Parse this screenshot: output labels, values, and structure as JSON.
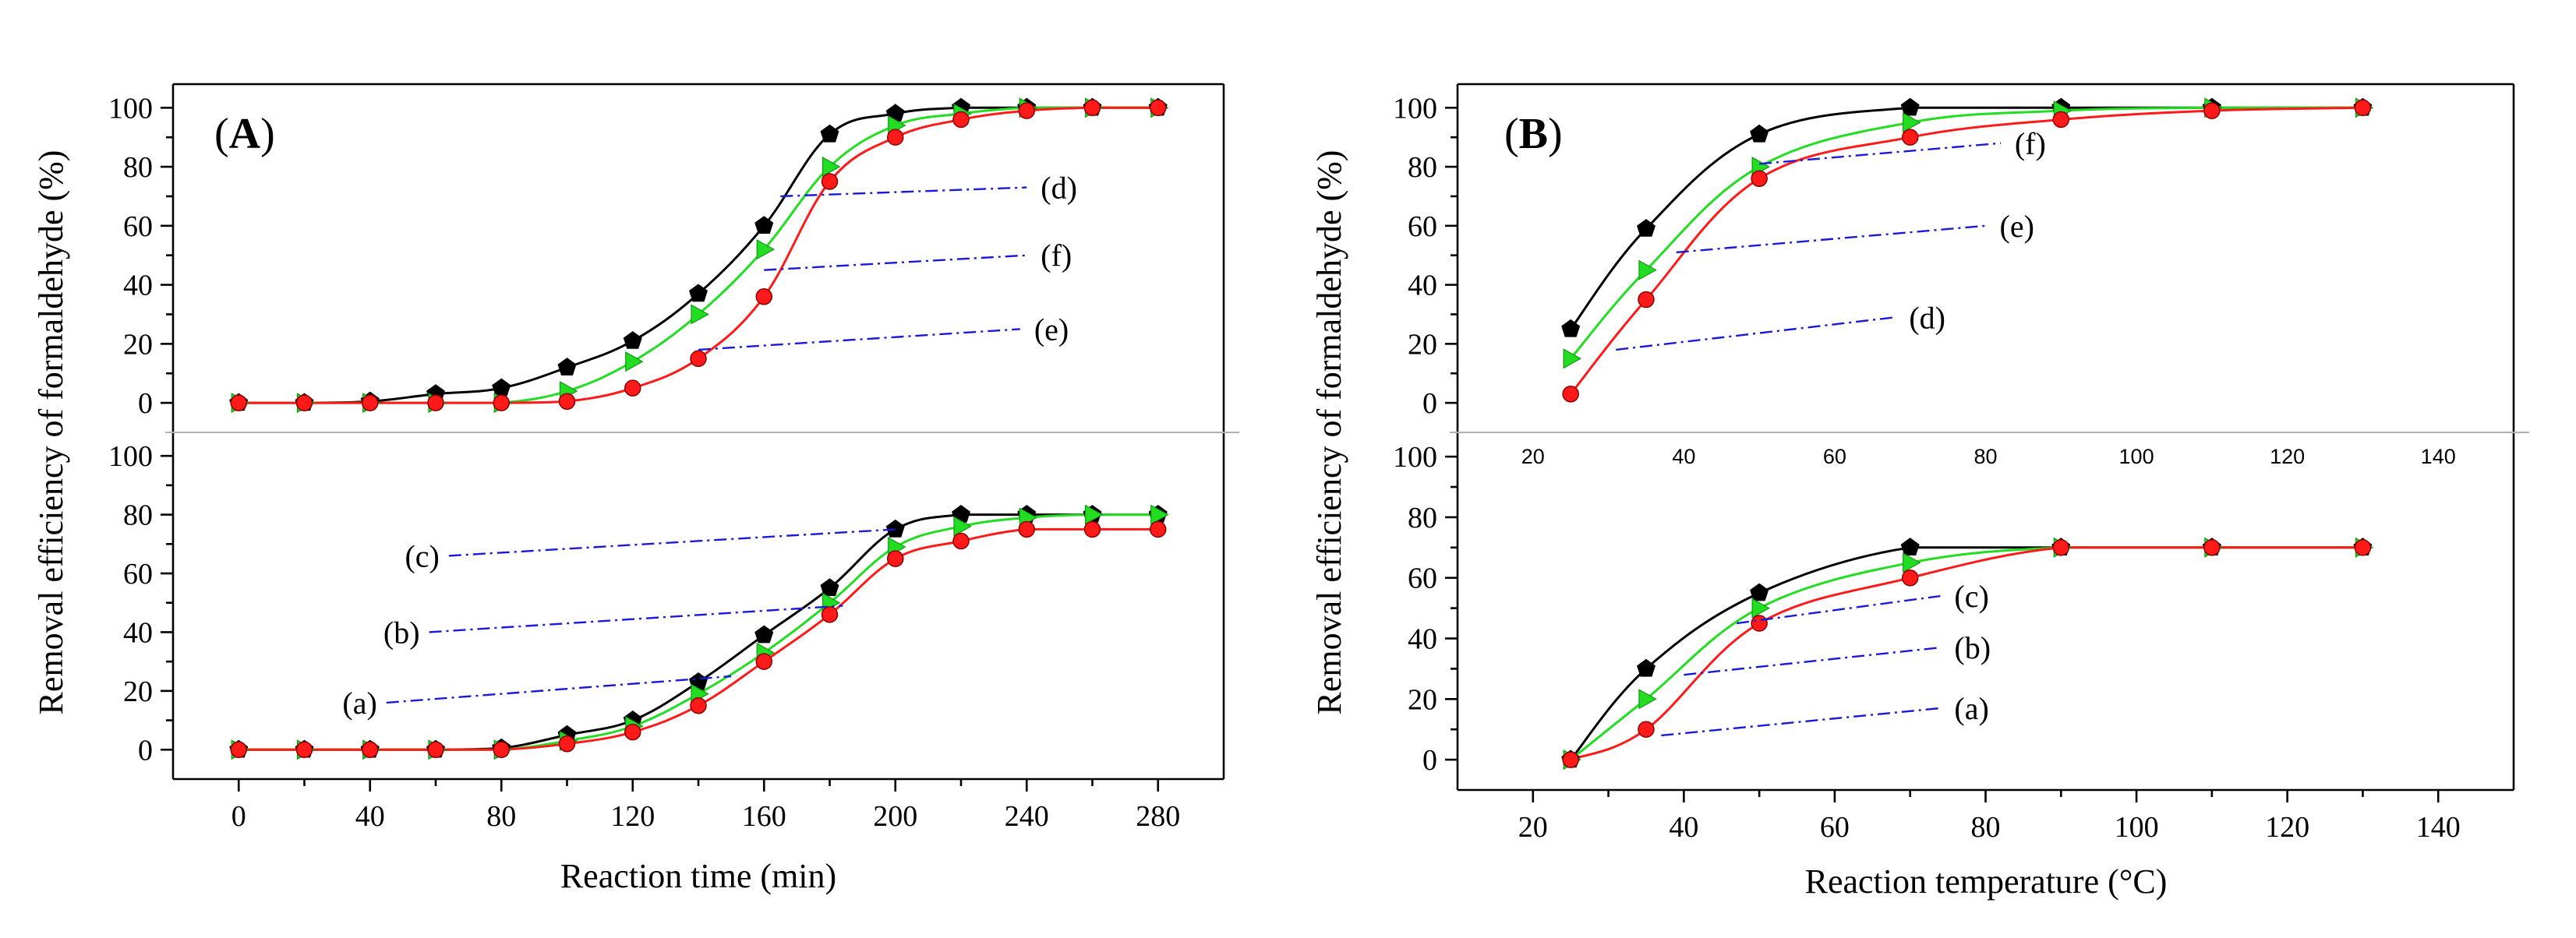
{
  "colors": {
    "black_series": "#000000",
    "green_series": "#22dd22",
    "red_series": "#ff1a1a",
    "leader_line": "#1a1ad6"
  },
  "chart_data": [
    {
      "type": "line",
      "panel": "A",
      "label": "(A)",
      "xlabel": "Reaction time (min)",
      "ylabel": "Removal efficiency of formaldehyde (%)",
      "xlim": [
        -20,
        300
      ],
      "x_ticks": [
        0,
        40,
        80,
        120,
        160,
        200,
        240,
        280
      ],
      "x_tick_labels": [
        "0",
        "40",
        "80",
        "120",
        "160",
        "200",
        "240",
        "280"
      ],
      "subplots": [
        {
          "position": "top",
          "ylim": [
            -10,
            108
          ],
          "y_ticks": [
            0,
            20,
            40,
            60,
            80,
            100
          ],
          "y_tick_labels": [
            "0",
            "20",
            "40",
            "60",
            "80",
            "100"
          ],
          "x": [
            0,
            20,
            40,
            60,
            80,
            100,
            120,
            140,
            160,
            180,
            200,
            220,
            240,
            260,
            280
          ],
          "series": [
            {
              "name": "black",
              "marker": "pentagon",
              "values": [
                0,
                0,
                0.5,
                3,
                5,
                12,
                21,
                37,
                60,
                91,
                98,
                100,
                100,
                100,
                100
              ]
            },
            {
              "name": "green",
              "marker": "triangle",
              "values": [
                0,
                0,
                0,
                0,
                0,
                4,
                14,
                30,
                52,
                80,
                94,
                98,
                100,
                100,
                100
              ]
            },
            {
              "name": "red",
              "marker": "circle",
              "values": [
                0,
                0,
                0,
                0,
                0,
                0.5,
                5,
                15,
                36,
                75,
                90,
                96,
                99,
                100,
                100
              ]
            }
          ],
          "annotations": [
            {
              "text": "(d)",
              "from": [
                165,
                70
              ],
              "to": [
                240,
                73
              ]
            },
            {
              "text": "(f)",
              "from": [
                160,
                45
              ],
              "to": [
                240,
                50
              ]
            },
            {
              "text": "(e)",
              "from": [
                140,
                18
              ],
              "to": [
                238,
                25
              ]
            }
          ]
        },
        {
          "position": "bottom",
          "ylim": [
            -10,
            108
          ],
          "y_ticks": [
            0,
            20,
            40,
            60,
            80,
            100
          ],
          "y_tick_labels": [
            "0",
            "20",
            "40",
            "60",
            "80",
            "100"
          ],
          "x": [
            0,
            20,
            40,
            60,
            80,
            100,
            120,
            140,
            160,
            180,
            200,
            220,
            240,
            260,
            280
          ],
          "series": [
            {
              "name": "black",
              "marker": "pentagon",
              "values": [
                0,
                0,
                0,
                0,
                0.5,
                5,
                10,
                23,
                39,
                55,
                75,
                80,
                80,
                80,
                80
              ]
            },
            {
              "name": "green",
              "marker": "triangle",
              "values": [
                0,
                0,
                0,
                0,
                0,
                3,
                8,
                19,
                33,
                50,
                69,
                76,
                79,
                80,
                80
              ]
            },
            {
              "name": "red",
              "marker": "circle",
              "values": [
                0,
                0,
                0,
                0,
                0,
                2,
                6,
                15,
                30,
                46,
                65,
                71,
                75,
                75,
                75
              ]
            }
          ],
          "annotations": [
            {
              "text": "(c)",
              "from": [
                64,
                66
              ],
              "to": [
                200,
                75
              ]
            },
            {
              "text": "(b)",
              "from": [
                58,
                40
              ],
              "to": [
                184,
                49
              ]
            },
            {
              "text": "(a)",
              "from": [
                45,
                16
              ],
              "to": [
                150,
                25
              ]
            }
          ]
        }
      ]
    },
    {
      "type": "line",
      "panel": "B",
      "label": "(B)",
      "xlabel": "Reaction temperature (°C)",
      "ylabel": "Removal efficiency of formaldehyde (%)",
      "xlim": [
        10,
        150
      ],
      "x_ticks": [
        20,
        40,
        60,
        80,
        100,
        120,
        140
      ],
      "x_tick_labels": [
        "20",
        "40",
        "60",
        "80",
        "100",
        "120",
        "140"
      ],
      "subplots": [
        {
          "position": "top",
          "ylim": [
            -10,
            108
          ],
          "y_ticks": [
            0,
            20,
            40,
            60,
            80,
            100
          ],
          "y_tick_labels": [
            "0",
            "20",
            "40",
            "60",
            "80",
            "100"
          ],
          "x": [
            25,
            35,
            50,
            70,
            90,
            110,
            130
          ],
          "series": [
            {
              "name": "black",
              "marker": "pentagon",
              "values": [
                25,
                59,
                91,
                100,
                100,
                100,
                100
              ]
            },
            {
              "name": "green",
              "marker": "triangle",
              "values": [
                15,
                45,
                80,
                95,
                99,
                100,
                100
              ]
            },
            {
              "name": "red",
              "marker": "circle",
              "values": [
                3,
                35,
                76,
                90,
                96,
                99,
                100
              ]
            }
          ],
          "annotations": [
            {
              "text": "(f)",
              "from": [
                50,
                81
              ],
              "to": [
                82,
                88
              ]
            },
            {
              "text": "(e)",
              "from": [
                39,
                51
              ],
              "to": [
                80,
                60
              ]
            },
            {
              "text": "(d)",
              "from": [
                31,
                18
              ],
              "to": [
                68,
                29
              ]
            }
          ]
        },
        {
          "position": "bottom",
          "ylim": [
            -10,
            108
          ],
          "y_ticks": [
            0,
            20,
            40,
            60,
            80,
            100
          ],
          "y_tick_labels": [
            "0",
            "20",
            "40",
            "60",
            "80",
            "100"
          ],
          "x": [
            25,
            35,
            50,
            70,
            90,
            110,
            130
          ],
          "series": [
            {
              "name": "black",
              "marker": "pentagon",
              "values": [
                0,
                30,
                55,
                70,
                70,
                70,
                70
              ]
            },
            {
              "name": "green",
              "marker": "triangle",
              "values": [
                0,
                20,
                50,
                65,
                70,
                70,
                70
              ]
            },
            {
              "name": "red",
              "marker": "circle",
              "values": [
                0,
                10,
                45,
                60,
                70,
                70,
                70
              ]
            }
          ],
          "annotations": [
            {
              "text": "(c)",
              "from": [
                47,
                45
              ],
              "to": [
                74,
                54
              ]
            },
            {
              "text": "(b)",
              "from": [
                40,
                28
              ],
              "to": [
                74,
                37
              ]
            },
            {
              "text": "(a)",
              "from": [
                37,
                8
              ],
              "to": [
                74,
                17
              ]
            }
          ]
        }
      ]
    }
  ]
}
